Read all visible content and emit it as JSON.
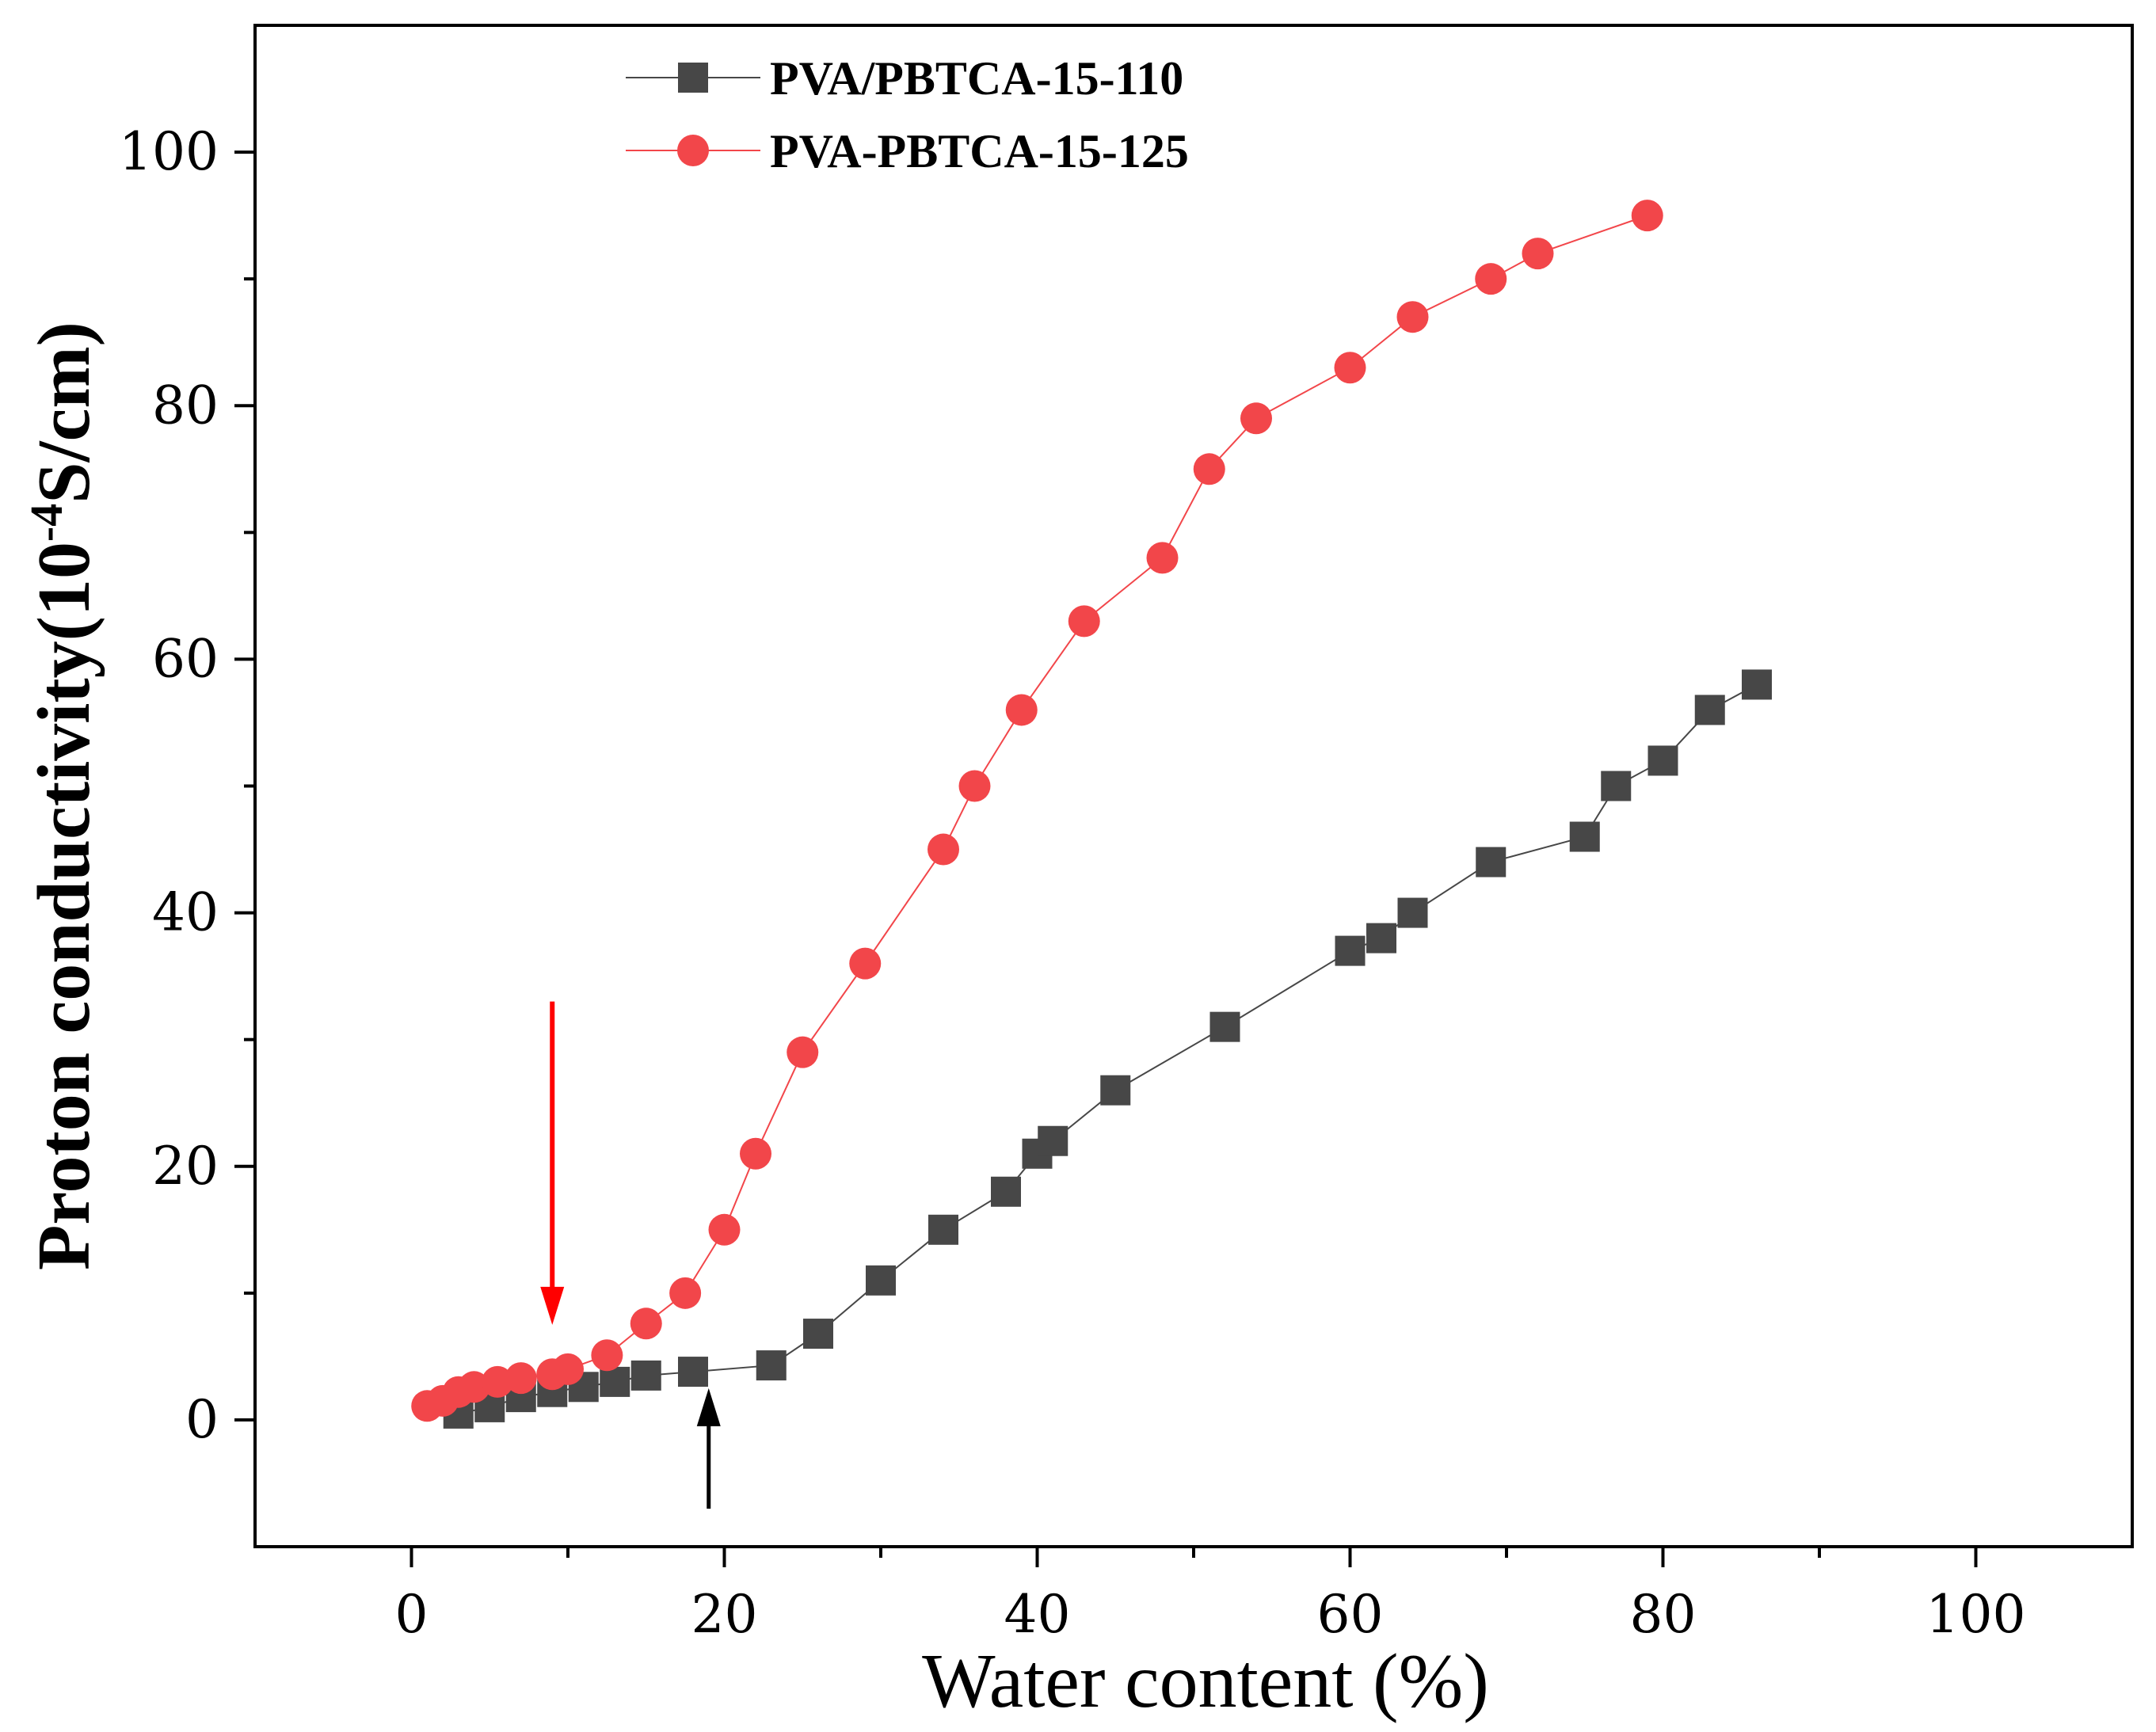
{
  "chart_data": {
    "type": "scatter",
    "xlabel": "Water content (%)",
    "ylabel": {
      "prefix": "Proton conductivity(10",
      "superscript": "-4",
      "suffix": "S/cm)"
    },
    "xlim": [
      -10,
      110
    ],
    "ylim": [
      -10,
      110
    ],
    "xticks": [
      0,
      20,
      40,
      60,
      80,
      100
    ],
    "yticks": [
      0,
      20,
      40,
      60,
      80,
      100
    ],
    "legend_position": "top-center",
    "series": [
      {
        "name": "PVA/PBTCA-15-110",
        "marker": "square",
        "color": "#474747",
        "line_color": "#474747",
        "x": [
          3,
          5,
          7,
          9,
          11,
          13,
          15,
          18,
          23,
          26,
          30,
          34,
          38,
          40,
          41,
          45,
          52,
          60,
          62,
          64,
          69,
          75,
          77,
          80,
          83,
          86
        ],
        "y": [
          0.5,
          1.0,
          1.8,
          2.2,
          2.6,
          3.0,
          3.5,
          3.8,
          4.3,
          6.8,
          11,
          15,
          18,
          21,
          22,
          26,
          31,
          37,
          38,
          40,
          44,
          46,
          50,
          52,
          56,
          58
        ]
      },
      {
        "name": "PVA-PBTCA-15-125",
        "marker": "circle",
        "color": "#f2464a",
        "line_color": "#f2464a",
        "x": [
          1,
          2,
          3,
          4,
          5.5,
          7,
          9,
          10,
          12.5,
          15,
          17.5,
          20,
          22,
          25,
          29,
          34,
          36,
          39,
          43,
          48,
          51,
          54,
          60,
          64,
          69,
          72,
          79
        ],
        "y": [
          1.1,
          1.5,
          2.2,
          2.6,
          3.0,
          3.3,
          3.6,
          4.0,
          5.1,
          7.6,
          10,
          15,
          21,
          29,
          36,
          45,
          50,
          56,
          63,
          68,
          75,
          79,
          83,
          87,
          90,
          92,
          95
        ]
      }
    ],
    "annotations": [
      {
        "type": "arrow",
        "color": "#ff0000",
        "x": 9,
        "y_from": 33,
        "y_to": 7.5,
        "direction": "down"
      },
      {
        "type": "arrow",
        "color": "#000000",
        "x": 19,
        "y_from": -7,
        "y_to": 2.5,
        "direction": "up"
      }
    ]
  }
}
